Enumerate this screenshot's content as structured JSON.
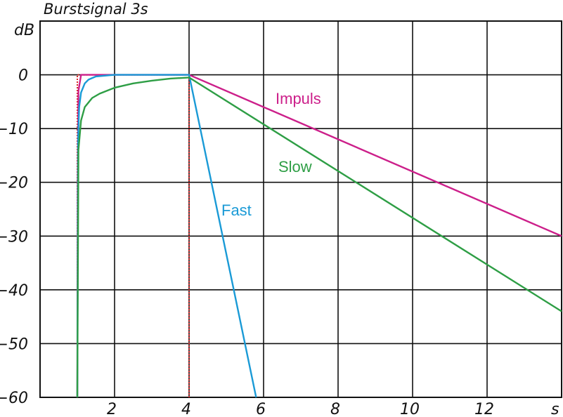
{
  "chart_data": {
    "type": "line",
    "title": "Burstsignal 3s",
    "ylabel": "dB",
    "xlabel": "s",
    "xlim": [
      0,
      14
    ],
    "ylim": [
      -60,
      10
    ],
    "grid": true,
    "x_ticks": [
      2,
      4,
      6,
      8,
      10,
      12
    ],
    "y_ticks": [
      0,
      -10,
      -20,
      -30,
      -40,
      -50,
      -60
    ],
    "x_tick_labels": [
      "2",
      "4",
      "6",
      "8",
      "10",
      "12"
    ],
    "y_tick_labels": [
      "0",
      "−10",
      "−20",
      "−30",
      "−40",
      "−50",
      "−60"
    ],
    "burst": {
      "color": "#d62728",
      "x": [
        1,
        1,
        4,
        4
      ],
      "y": [
        -60,
        0,
        0,
        -60
      ]
    },
    "series": [
      {
        "name": "Impuls",
        "color": "#cc1f8a",
        "x": [
          1,
          1.01,
          1.03,
          1.1,
          4,
          14
        ],
        "y": [
          -60,
          -20,
          -3,
          0,
          0,
          -30
        ]
      },
      {
        "name": "Fast",
        "color": "#1a9ad6",
        "x": [
          1,
          1.02,
          1.05,
          1.1,
          1.2,
          1.3,
          1.5,
          2,
          4,
          5.8
        ],
        "y": [
          -60,
          -12,
          -6,
          -3.3,
          -1.6,
          -0.9,
          -0.3,
          0,
          0,
          -60
        ]
      },
      {
        "name": "Slow",
        "color": "#2e9e45",
        "x": [
          1,
          1.03,
          1.1,
          1.2,
          1.4,
          1.6,
          2,
          2.5,
          3,
          3.5,
          4,
          14
        ],
        "y": [
          -60,
          -14,
          -8.5,
          -6,
          -4.3,
          -3.5,
          -2.4,
          -1.6,
          -1.1,
          -0.7,
          -0.5,
          -44
        ]
      }
    ],
    "annotations": [
      {
        "text": "Impuls",
        "color": "#cc1f8a"
      },
      {
        "text": "Slow",
        "color": "#2e9e45"
      },
      {
        "text": "Fast",
        "color": "#1a9ad6"
      }
    ]
  }
}
